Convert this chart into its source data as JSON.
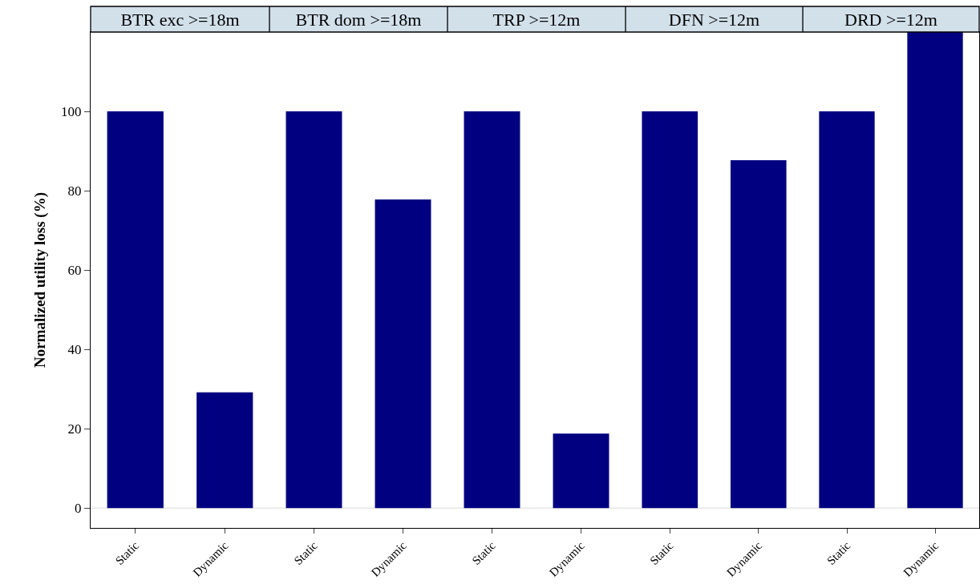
{
  "chart_data": [
    {
      "type": "bar",
      "title": "BTR exc >=18m",
      "ylabel": "Normalized utility loss (%)",
      "categories": [
        "Static",
        "Dynamic"
      ],
      "series": [
        {
          "color": "#000080",
          "values": [
            100,
            29.2
          ]
        }
      ],
      "ylim": [
        -5,
        120
      ],
      "yticks": [
        0,
        20,
        40,
        60,
        80,
        100
      ],
      "grid": false,
      "ref_lines": [
        {
          "axis": "y",
          "value": 0,
          "color": "#e6e6e6"
        }
      ]
    },
    {
      "type": "bar",
      "title": "BTR dom >=18m",
      "categories": [
        "Static",
        "Dynamic"
      ],
      "series": [
        {
          "color": "#000080",
          "values": [
            100,
            77.8
          ]
        }
      ],
      "ylim": [
        -5,
        120
      ],
      "yticks": [
        0,
        20,
        40,
        60,
        80,
        100
      ],
      "tick_labels": "x",
      "grid": false,
      "ref_lines": [
        {
          "axis": "y",
          "value": 0,
          "color": "#e6e6e6"
        }
      ]
    },
    {
      "type": "bar",
      "title": "TRP >=12m",
      "categories": [
        "Static",
        "Dynamic"
      ],
      "series": [
        {
          "color": "#000080",
          "values": [
            100,
            18.8
          ]
        }
      ],
      "ylim": [
        -5,
        120
      ],
      "yticks": [
        0,
        20,
        40,
        60,
        80,
        100
      ],
      "tick_labels": "x",
      "grid": false,
      "ref_lines": [
        {
          "axis": "y",
          "value": 0,
          "color": "#e6e6e6"
        }
      ]
    },
    {
      "type": "bar",
      "title": "DFN >=12m",
      "categories": [
        "Static",
        "Dynamic"
      ],
      "series": [
        {
          "color": "#000080",
          "values": [
            100,
            87.7
          ]
        }
      ],
      "ylim": [
        -5,
        120
      ],
      "yticks": [
        0,
        20,
        40,
        60,
        80,
        100
      ],
      "tick_labels": "x",
      "grid": false,
      "ref_lines": [
        {
          "axis": "y",
          "value": 0,
          "color": "#e6e6e6"
        }
      ]
    },
    {
      "type": "bar",
      "title": "DRD >=12m",
      "categories": [
        "Static",
        "Dynamic"
      ],
      "series": [
        {
          "color": "#000080",
          "values": [
            100,
            120
          ]
        }
      ],
      "ylim": [
        -5,
        120
      ],
      "yticks": [
        0,
        20,
        40,
        60,
        80,
        100
      ],
      "tick_labels": "x",
      "grid": false,
      "ref_lines": [
        {
          "axis": "y",
          "value": 0,
          "color": "#e6e6e6"
        }
      ]
    }
  ]
}
